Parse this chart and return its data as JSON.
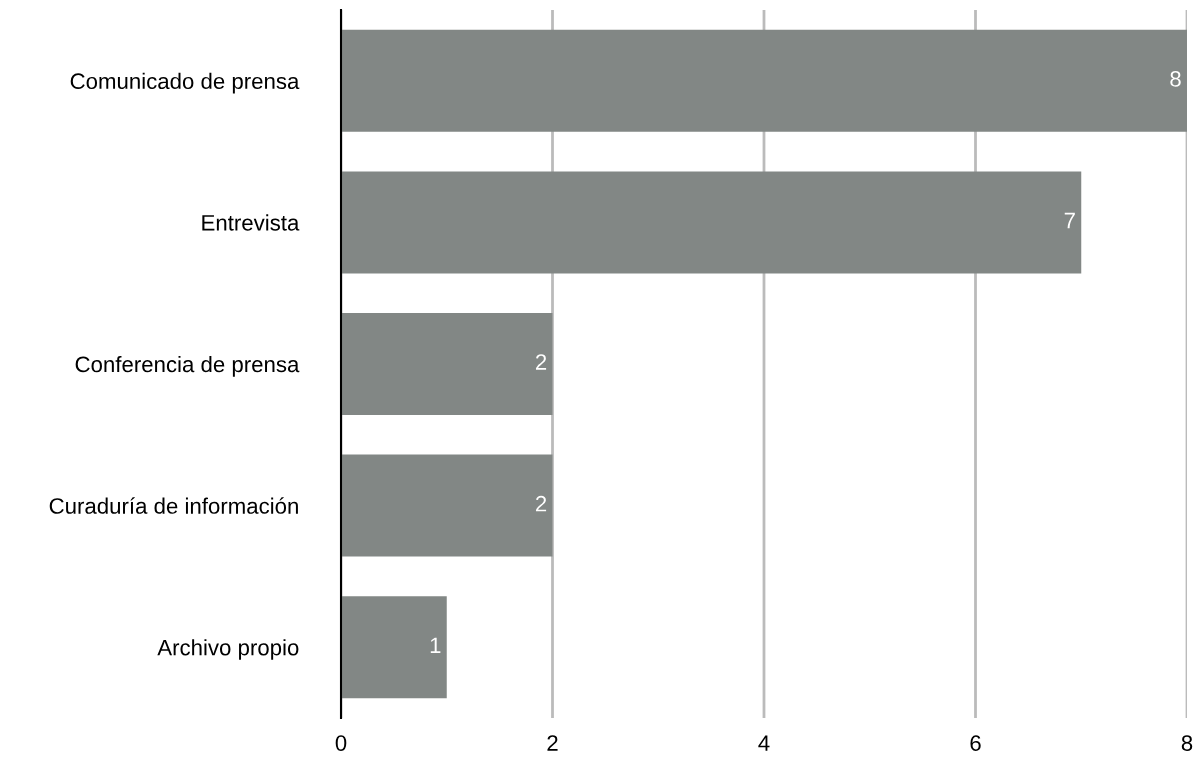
{
  "chart_data": {
    "type": "bar",
    "orientation": "horizontal",
    "categories": [
      "Comunicado de prensa",
      "Entrevista",
      "Conferencia de prensa",
      "Curaduría de información",
      "Archivo propio"
    ],
    "values": [
      8,
      7,
      2,
      2,
      1
    ],
    "color": "#828785",
    "xlim": [
      0,
      8
    ],
    "xticks": [
      0,
      2,
      4,
      6,
      8
    ],
    "grid": "x",
    "data_labels": true
  }
}
